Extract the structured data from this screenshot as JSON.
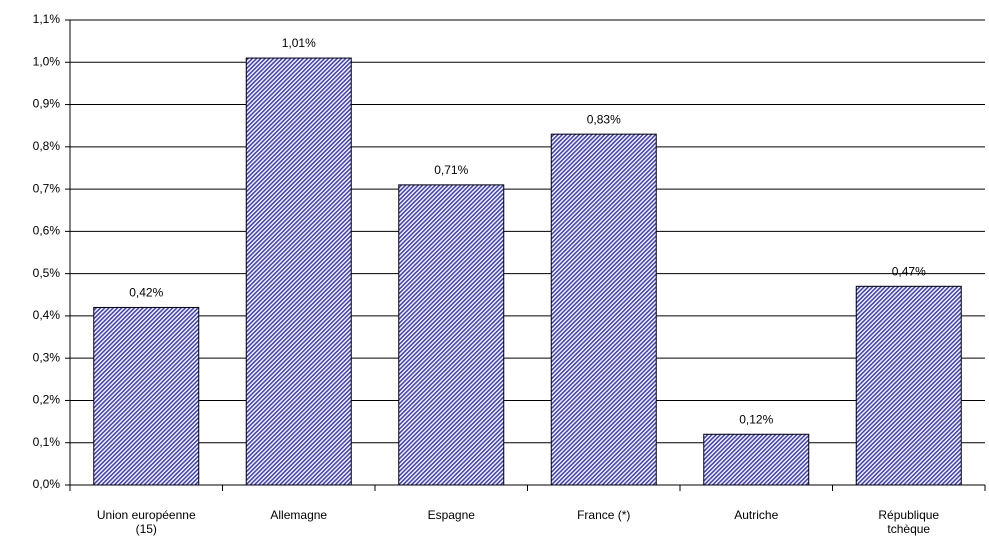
{
  "chart_data": {
    "type": "bar",
    "categories": [
      "Union européenne (15)",
      "Allemagne",
      "Espagne",
      "France (*)",
      "Autriche",
      "République tchèque"
    ],
    "values": [
      0.42,
      1.01,
      0.71,
      0.83,
      0.12,
      0.47
    ],
    "value_labels": [
      "0,42%",
      "1,01%",
      "0,71%",
      "0,83%",
      "0,12%",
      "0,47%"
    ],
    "color": "#4040c0",
    "ylim": [
      0,
      1.1
    ],
    "yticks": [
      {
        "value": 0,
        "label": "0,0%"
      },
      {
        "value": 0.1,
        "label": "0,1%"
      },
      {
        "value": 0.2,
        "label": "0,2%"
      },
      {
        "value": 0.3,
        "label": "0,3%"
      },
      {
        "value": 0.4,
        "label": "0,4%"
      },
      {
        "value": 0.5,
        "label": "0,5%"
      },
      {
        "value": 0.6,
        "label": "0,6%"
      },
      {
        "value": 0.7,
        "label": "0,7%"
      },
      {
        "value": 0.8,
        "label": "0,8%"
      },
      {
        "value": 0.9,
        "label": "0,9%"
      },
      {
        "value": 1.0,
        "label": "1,0%"
      },
      {
        "value": 1.1,
        "label": "1,1%"
      }
    ],
    "grid": true
  }
}
